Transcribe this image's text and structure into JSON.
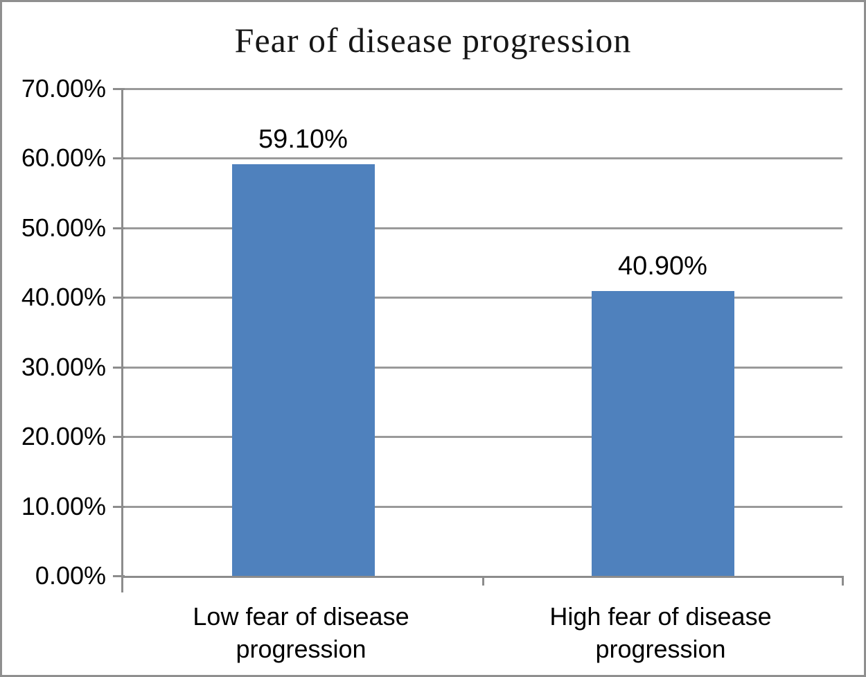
{
  "chart_data": {
    "type": "bar",
    "title": "Fear of disease progression",
    "categories": [
      "Low fear of disease progression",
      "High fear of disease progression"
    ],
    "values": [
      59.1,
      40.9
    ],
    "value_labels": [
      "59.10%",
      "40.90%"
    ],
    "xlabel": "",
    "ylabel": "",
    "y_axis": {
      "min": 0,
      "max": 70,
      "step": 10,
      "tick_labels": [
        "0.00%",
        "10.00%",
        "20.00%",
        "30.00%",
        "40.00%",
        "50.00%",
        "60.00%",
        "70.00%"
      ]
    },
    "grid": true,
    "legend_position": "none",
    "colors": {
      "bar_fill": "#4f81bd",
      "gridline": "#9a9a9a",
      "axis_line": "#8c8c8c",
      "frame_border": "#8f8f8f",
      "text": "#000000"
    }
  }
}
